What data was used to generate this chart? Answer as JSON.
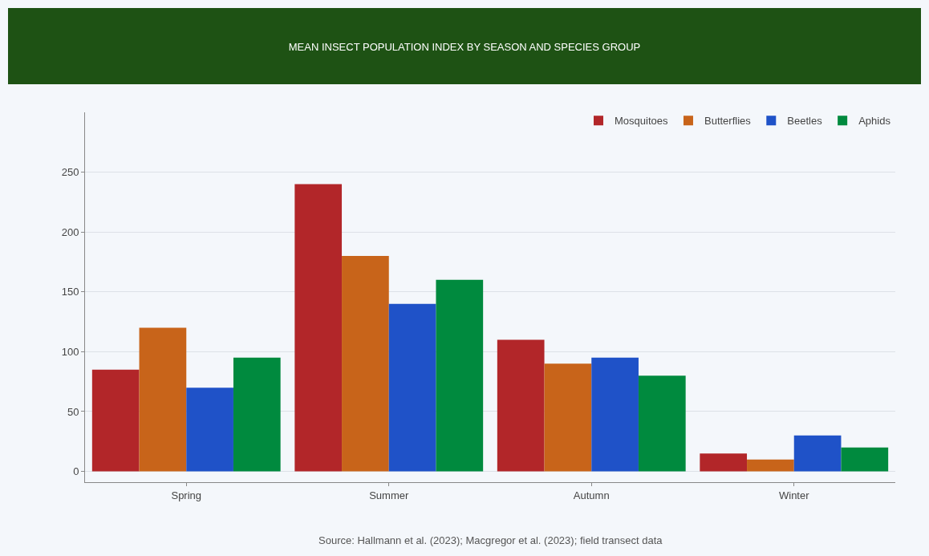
{
  "chart_data": {
    "type": "bar",
    "title": "MEAN INSECT POPULATION INDEX BY SEASON AND SPECIES GROUP",
    "categories": [
      "Spring",
      "Summer",
      "Autumn",
      "Winter"
    ],
    "series": [
      {
        "name": "Mosquitoes",
        "color": "#b22629",
        "values": [
          85,
          240,
          110,
          15
        ]
      },
      {
        "name": "Butterflies",
        "color": "#c8641a",
        "values": [
          120,
          180,
          90,
          10
        ]
      },
      {
        "name": "Beetles",
        "color": "#1f52c8",
        "values": [
          70,
          140,
          95,
          30
        ]
      },
      {
        "name": "Aphids",
        "color": "#008a3e",
        "values": [
          95,
          160,
          80,
          20
        ]
      }
    ],
    "ylim": [
      -9,
      300
    ],
    "yticks": [
      0,
      50,
      100,
      150,
      200,
      250
    ],
    "grid": "y",
    "legend": "top right",
    "annotations": [
      "Source: Hallmann et al. (2023); Macgregor et al. (2023); field transect data"
    ]
  }
}
